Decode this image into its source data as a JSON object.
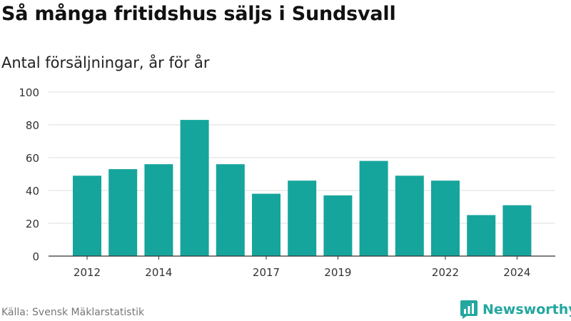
{
  "title": "Så många fritidshus säljs i Sundsvall",
  "subtitle": "Antal försäljningar, år för år",
  "source": "Källa: Svensk Mäklarstatistik",
  "brand": {
    "name": "Newsworthy",
    "icon": "newsworthy-logo-icon",
    "color": "#23a79f"
  },
  "chart_data": {
    "type": "bar",
    "categories": [
      "2012",
      "2013",
      "2014",
      "2015",
      "2016",
      "2017",
      "2018",
      "2019",
      "2020",
      "2021",
      "2022",
      "2023",
      "2024"
    ],
    "values": [
      49,
      53,
      56,
      83,
      56,
      38,
      46,
      37,
      58,
      49,
      46,
      25,
      31
    ],
    "xtick_labels": [
      "2012",
      "2014",
      "2017",
      "2019",
      "2022",
      "2024"
    ],
    "ylim": [
      0,
      100
    ],
    "yticks": [
      0,
      20,
      40,
      60,
      80,
      100
    ],
    "xlabel": "",
    "ylabel": "",
    "grid": true,
    "bar_color": "#16a59c"
  }
}
